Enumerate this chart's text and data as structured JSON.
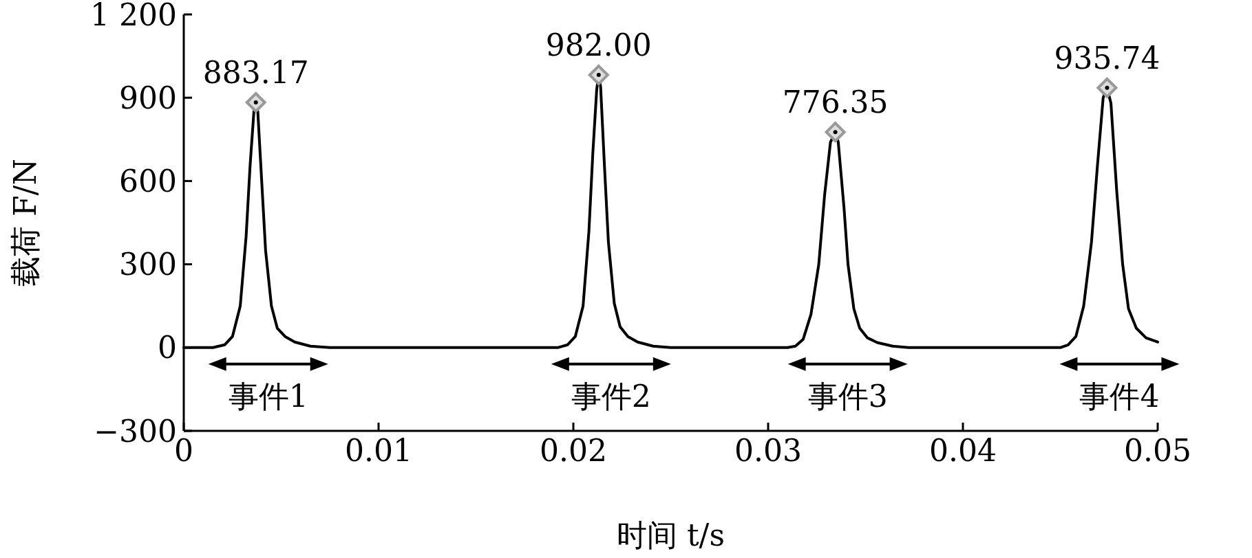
{
  "chart_data": {
    "type": "line",
    "xlabel": "时间 t/s",
    "ylabel": "载荷 F/N",
    "xlim": [
      0,
      0.05
    ],
    "xticks": [
      0,
      0.01,
      0.02,
      0.03,
      0.04,
      0.05
    ],
    "ylim": [
      -300,
      1200
    ],
    "yticks": [
      -300,
      0,
      300,
      600,
      900,
      {
        "value": 1200,
        "label": "1 200"
      }
    ],
    "grid": false,
    "series": [
      {
        "type": "line",
        "color": "#000000",
        "marker": "none",
        "line_style": "solid",
        "x": [
          0,
          0.0015,
          0.0021,
          0.0025,
          0.0029,
          0.0032,
          0.0034,
          0.0036,
          0.0037,
          0.0038,
          0.004,
          0.0042,
          0.0045,
          0.0048,
          0.0052,
          0.0057,
          0.0065,
          0.0075,
          0.0192,
          0.0197,
          0.0201,
          0.0205,
          0.0208,
          0.021,
          0.0212,
          0.0213,
          0.0214,
          0.0216,
          0.0218,
          0.0221,
          0.0224,
          0.0228,
          0.0233,
          0.0241,
          0.025,
          0.031,
          0.0314,
          0.0318,
          0.0322,
          0.0326,
          0.0329,
          0.0332,
          0.03345,
          0.0336,
          0.0339,
          0.0341,
          0.0344,
          0.0347,
          0.0351,
          0.0356,
          0.0364,
          0.0372,
          0.045,
          0.0454,
          0.0458,
          0.0462,
          0.0466,
          0.0469,
          0.0472,
          0.0474,
          0.0476,
          0.0479,
          0.0482,
          0.0485,
          0.0489,
          0.0494,
          0.05
        ],
        "values": [
          0,
          0,
          10,
          40,
          150,
          400,
          650,
          850,
          883,
          850,
          600,
          350,
          150,
          70,
          40,
          20,
          5,
          0,
          0,
          10,
          40,
          150,
          420,
          700,
          930,
          982,
          940,
          650,
          380,
          160,
          75,
          40,
          20,
          5,
          0,
          0,
          5,
          30,
          120,
          300,
          550,
          740,
          776,
          740,
          500,
          300,
          140,
          70,
          35,
          18,
          5,
          0,
          0,
          10,
          40,
          150,
          380,
          650,
          900,
          936,
          880,
          560,
          300,
          140,
          70,
          35,
          20
        ]
      },
      {
        "type": "scatter",
        "color": "#999999",
        "marker": "diamond",
        "x": [
          0.0037,
          0.0213,
          0.03345,
          0.0474
        ],
        "values": [
          883.17,
          982.0,
          776.35,
          935.74
        ],
        "value_labels": [
          "883.17",
          "982.00",
          "776.35",
          "935.74"
        ]
      }
    ],
    "annotations": [
      "事件1",
      "事件2",
      "事件3",
      "事件4"
    ]
  }
}
